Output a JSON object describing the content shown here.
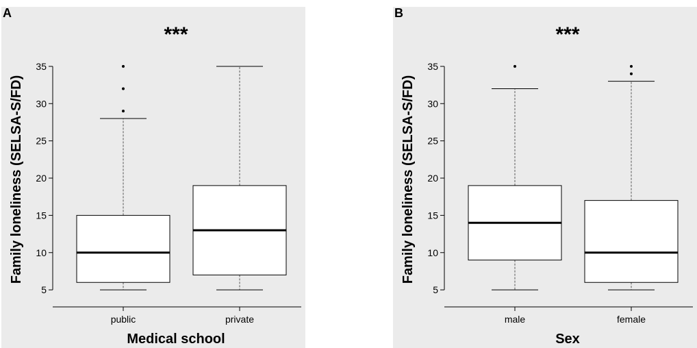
{
  "chart_data": [
    {
      "panel_label": "A",
      "type": "box",
      "title": "***",
      "xlabel": "Medical school",
      "ylabel": "Family loneliness (SELSA-S/FD)",
      "ylim": [
        4,
        36
      ],
      "yticks": [
        5,
        10,
        15,
        20,
        25,
        30,
        35
      ],
      "categories": [
        "public",
        "private"
      ],
      "boxes": [
        {
          "category": "public",
          "whisker_low": 5,
          "q1": 6,
          "median": 10,
          "q3": 15,
          "whisker_high": 28,
          "outliers": [
            29,
            32,
            35
          ]
        },
        {
          "category": "private",
          "whisker_low": 5,
          "q1": 7,
          "median": 13,
          "q3": 19,
          "whisker_high": 35,
          "outliers": []
        }
      ],
      "grid": false
    },
    {
      "panel_label": "B",
      "type": "box",
      "title": "***",
      "xlabel": "Sex",
      "ylabel": "Family loneliness (SELSA-S/FD)",
      "ylim": [
        4,
        36
      ],
      "yticks": [
        5,
        10,
        15,
        20,
        25,
        30,
        35
      ],
      "categories": [
        "male",
        "female"
      ],
      "boxes": [
        {
          "category": "male",
          "whisker_low": 5,
          "q1": 9,
          "median": 14,
          "q3": 19,
          "whisker_high": 32,
          "outliers": [
            35
          ]
        },
        {
          "category": "female",
          "whisker_low": 5,
          "q1": 6,
          "median": 10,
          "q3": 17,
          "whisker_high": 33,
          "outliers": [
            34,
            35
          ]
        }
      ],
      "grid": false
    }
  ]
}
